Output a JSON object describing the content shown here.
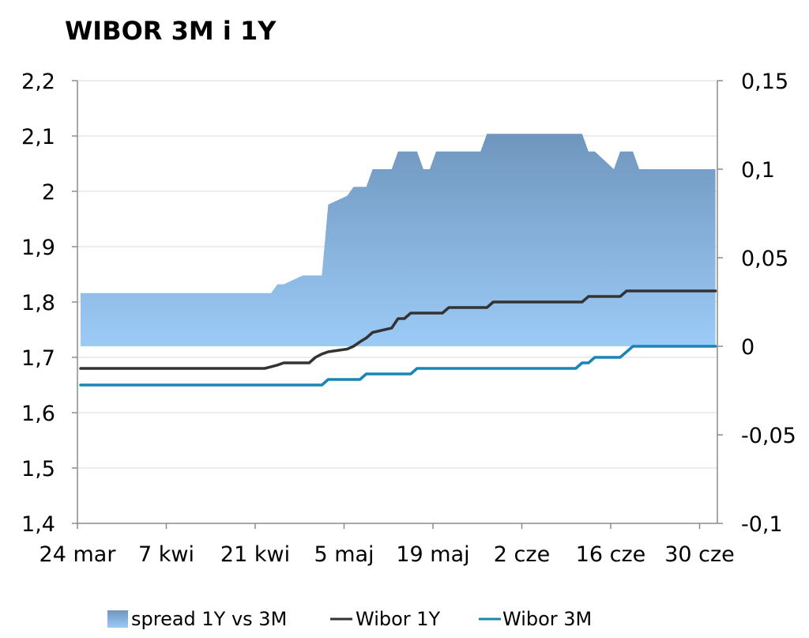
{
  "chart_data": {
    "type": "line",
    "title": "WIBOR 3M i 1Y",
    "xlabel": "",
    "ylabel": "",
    "x_tick_labels": [
      "24 mar",
      "7 kwi",
      "21 kwi",
      "5 maj",
      "19 maj",
      "2 cze",
      "16 cze",
      "30 cze"
    ],
    "y_left": {
      "ylim": [
        1.4,
        2.2
      ],
      "ticks": [
        2.2,
        2.1,
        2,
        1.9,
        1.8,
        1.7,
        1.6,
        1.5,
        1.4
      ],
      "tick_labels": [
        "2,2",
        "2,1",
        "2",
        "1,9",
        "1,8",
        "1,7",
        "1,6",
        "1,5",
        "1,4"
      ]
    },
    "y_right": {
      "ylim": [
        -0.1,
        0.15
      ],
      "ticks": [
        0.15,
        0.1,
        0.05,
        0,
        -0.05,
        -0.1
      ],
      "tick_labels": [
        "0,15",
        "0,1",
        "0,05",
        "0",
        "-0,05",
        "-0,1"
      ]
    },
    "grid": true,
    "legend_position": "bottom",
    "colors": {
      "spread_top": "#6f96bd",
      "spread_bottom": "#9ccbf7",
      "wibor_1y": "#333333",
      "wibor_3m": "#1a84b6",
      "grid": "#d9d9d9",
      "axis": "#8c8c8c"
    },
    "series": [
      {
        "name": "spread 1Y vs 3M",
        "kind": "area",
        "axis": "right",
        "x": [
          "2014-03-24",
          "2014-04-17",
          "2014-04-23",
          "2014-04-24",
          "2014-04-25",
          "2014-04-28",
          "2014-04-29",
          "2014-04-30",
          "2014-05-01",
          "2014-05-02",
          "2014-05-05",
          "2014-05-06",
          "2014-05-07",
          "2014-05-08",
          "2014-05-09",
          "2014-05-12",
          "2014-05-13",
          "2014-05-14",
          "2014-05-15",
          "2014-05-16",
          "2014-05-17",
          "2014-05-18",
          "2014-05-19",
          "2014-05-20",
          "2014-05-21",
          "2014-05-22",
          "2014-05-23",
          "2014-05-26",
          "2014-05-27",
          "2014-05-28",
          "2014-05-29",
          "2014-05-30",
          "2014-06-02",
          "2014-06-03",
          "2014-06-04",
          "2014-06-05",
          "2014-06-06",
          "2014-06-09",
          "2014-06-10",
          "2014-06-11",
          "2014-06-12",
          "2014-06-13",
          "2014-06-16",
          "2014-06-17",
          "2014-06-18",
          "2014-06-19",
          "2014-06-20",
          "2014-06-23",
          "2014-06-24",
          "2014-06-25",
          "2014-06-26",
          "2014-06-27",
          "2014-06-30",
          "2014-07-01",
          "2014-07-02"
        ],
        "values": [
          0.03,
          0.03,
          0.03,
          0.035,
          0.035,
          0.04,
          0.04,
          0.04,
          0.04,
          0.08,
          0.085,
          0.09,
          0.09,
          0.09,
          0.1,
          0.1,
          0.11,
          0.11,
          0.11,
          0.11,
          0.1,
          0.1,
          0.11,
          0.11,
          0.11,
          0.11,
          0.11,
          0.11,
          0.12,
          0.12,
          0.12,
          0.12,
          0.12,
          0.12,
          0.12,
          0.12,
          0.12,
          0.12,
          0.12,
          0.12,
          0.11,
          0.11,
          0.1,
          0.11,
          0.11,
          0.11,
          0.1,
          0.1,
          0.1,
          0.1,
          0.1,
          0.1,
          0.1,
          0.1,
          0.1
        ]
      },
      {
        "name": "Wibor 1Y",
        "kind": "line",
        "axis": "left",
        "x": [
          "2014-03-24",
          "2014-04-17",
          "2014-04-22",
          "2014-04-23",
          "2014-04-24",
          "2014-04-25",
          "2014-04-28",
          "2014-04-29",
          "2014-04-30",
          "2014-05-01",
          "2014-05-02",
          "2014-05-05",
          "2014-05-06",
          "2014-05-07",
          "2014-05-08",
          "2014-05-09",
          "2014-05-12",
          "2014-05-13",
          "2014-05-14",
          "2014-05-15",
          "2014-05-16",
          "2014-05-19",
          "2014-05-20",
          "2014-05-21",
          "2014-05-22",
          "2014-05-23",
          "2014-05-26",
          "2014-05-27",
          "2014-05-28",
          "2014-05-29",
          "2014-05-30",
          "2014-06-02",
          "2014-06-03",
          "2014-06-04",
          "2014-06-05",
          "2014-06-06",
          "2014-06-09",
          "2014-06-10",
          "2014-06-11",
          "2014-06-12",
          "2014-06-13",
          "2014-06-16",
          "2014-06-17",
          "2014-06-18",
          "2014-06-19",
          "2014-06-20",
          "2014-06-23",
          "2014-06-24",
          "2014-06-25",
          "2014-06-26",
          "2014-06-27",
          "2014-06-30",
          "2014-07-01",
          "2014-07-02"
        ],
        "values": [
          1.68,
          1.68,
          1.68,
          1.683,
          1.686,
          1.69,
          1.69,
          1.69,
          1.7,
          1.706,
          1.71,
          1.715,
          1.72,
          1.728,
          1.735,
          1.745,
          1.753,
          1.77,
          1.77,
          1.78,
          1.78,
          1.78,
          1.78,
          1.79,
          1.79,
          1.79,
          1.79,
          1.79,
          1.8,
          1.8,
          1.8,
          1.8,
          1.8,
          1.8,
          1.8,
          1.8,
          1.8,
          1.8,
          1.8,
          1.81,
          1.81,
          1.81,
          1.81,
          1.82,
          1.82,
          1.82,
          1.82,
          1.82,
          1.82,
          1.82,
          1.82,
          1.82,
          1.82,
          1.82
        ]
      },
      {
        "name": "Wibor 3M",
        "kind": "line",
        "axis": "left",
        "x": [
          "2014-03-24",
          "2014-05-01",
          "2014-05-02",
          "2014-05-05",
          "2014-05-06",
          "2014-05-07",
          "2014-05-08",
          "2014-05-09",
          "2014-05-12",
          "2014-05-13",
          "2014-05-14",
          "2014-05-15",
          "2014-05-16",
          "2014-05-19",
          "2014-05-20",
          "2014-06-10",
          "2014-06-11",
          "2014-06-12",
          "2014-06-13",
          "2014-06-16",
          "2014-06-17",
          "2014-06-18",
          "2014-06-19",
          "2014-07-02"
        ],
        "values": [
          1.65,
          1.65,
          1.66,
          1.66,
          1.66,
          1.66,
          1.67,
          1.67,
          1.67,
          1.67,
          1.67,
          1.67,
          1.68,
          1.68,
          1.68,
          1.68,
          1.69,
          1.69,
          1.7,
          1.7,
          1.7,
          1.71,
          1.72,
          1.72
        ]
      }
    ]
  }
}
